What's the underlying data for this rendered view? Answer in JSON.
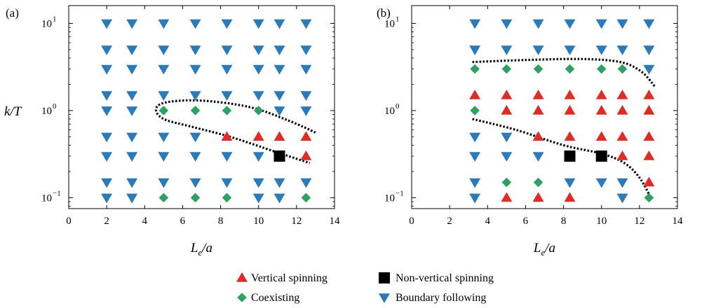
{
  "colors": {
    "vertical_spinning": "#de2d26",
    "non_vertical_spinning": "#000000",
    "coexisting": "#2ca25f",
    "boundary_following": "#2b7bba"
  },
  "legend": [
    {
      "key": "vertical_spinning",
      "label": "Vertical spinning",
      "marker": "triangle-up"
    },
    {
      "key": "non_vertical_spinning",
      "label": "Non-vertical spinning",
      "marker": "square"
    },
    {
      "key": "coexisting",
      "label": "Coexisting",
      "marker": "diamond"
    },
    {
      "key": "boundary_following",
      "label": "Boundary following",
      "marker": "triangle-down"
    }
  ],
  "chart_data": [
    {
      "type": "scatter",
      "panel_label": "(a)",
      "xlabel_main": "L",
      "xlabel_sub": "e",
      "xlabel_rest": "/a",
      "ylabel": "k/T",
      "xlim": [
        0,
        14
      ],
      "ylim": [
        0.075,
        16
      ],
      "yscale": "log",
      "xticks": [
        "0",
        "2",
        "4",
        "6",
        "8",
        "10",
        "12",
        "14"
      ],
      "yticks": [
        {
          "base": "10",
          "exp": "1",
          "value": 10
        },
        {
          "base": "10",
          "exp": "0",
          "value": 1
        },
        {
          "base": "10",
          "exp": "−1",
          "value": 0.1
        }
      ],
      "series": [
        {
          "key": "boundary_following",
          "points": [
            [
              2,
              10
            ],
            [
              3.33,
              10
            ],
            [
              5,
              10
            ],
            [
              6.67,
              10
            ],
            [
              8.33,
              10
            ],
            [
              10,
              10
            ],
            [
              11.1,
              10
            ],
            [
              12.5,
              10
            ],
            [
              2,
              5
            ],
            [
              3.33,
              5
            ],
            [
              5,
              5
            ],
            [
              6.67,
              5
            ],
            [
              8.33,
              5
            ],
            [
              10,
              5
            ],
            [
              11.1,
              5
            ],
            [
              12.5,
              5
            ],
            [
              2,
              3
            ],
            [
              3.33,
              3
            ],
            [
              5,
              3
            ],
            [
              6.67,
              3
            ],
            [
              8.33,
              3
            ],
            [
              10,
              3
            ],
            [
              11.1,
              3
            ],
            [
              12.5,
              3
            ],
            [
              2,
              1.5
            ],
            [
              3.33,
              1.5
            ],
            [
              5,
              1.5
            ],
            [
              6.67,
              1.5
            ],
            [
              8.33,
              1.5
            ],
            [
              10,
              1.5
            ],
            [
              11.1,
              1.5
            ],
            [
              12.5,
              1.5
            ],
            [
              2,
              1
            ],
            [
              3.33,
              1
            ],
            [
              11.1,
              1
            ],
            [
              12.5,
              1
            ],
            [
              2,
              0.5
            ],
            [
              3.33,
              0.5
            ],
            [
              5,
              0.5
            ],
            [
              6.67,
              0.5
            ],
            [
              2,
              0.3
            ],
            [
              3.33,
              0.3
            ],
            [
              5,
              0.3
            ],
            [
              6.67,
              0.3
            ],
            [
              8.33,
              0.3
            ],
            [
              10,
              0.3
            ],
            [
              2,
              0.15
            ],
            [
              3.33,
              0.15
            ],
            [
              5,
              0.15
            ],
            [
              6.67,
              0.15
            ],
            [
              8.33,
              0.15
            ],
            [
              10,
              0.15
            ],
            [
              11.1,
              0.15
            ],
            [
              12.5,
              0.15
            ],
            [
              2,
              0.1
            ],
            [
              3.33,
              0.1
            ],
            [
              10,
              0.1
            ],
            [
              11.1,
              0.1
            ]
          ]
        },
        {
          "key": "coexisting",
          "points": [
            [
              5,
              1
            ],
            [
              6.67,
              1
            ],
            [
              8.33,
              1
            ],
            [
              10,
              1
            ],
            [
              5,
              0.1
            ],
            [
              6.67,
              0.1
            ],
            [
              8.33,
              0.1
            ],
            [
              12.5,
              0.1
            ]
          ]
        },
        {
          "key": "vertical_spinning",
          "points": [
            [
              8.33,
              0.5
            ],
            [
              10,
              0.5
            ],
            [
              11.1,
              0.5
            ],
            [
              12.5,
              0.5
            ],
            [
              12.5,
              0.3
            ]
          ]
        },
        {
          "key": "non_vertical_spinning",
          "points": [
            [
              11.1,
              0.3
            ]
          ]
        }
      ],
      "boundary_curves": [
        [
          [
            13,
            0.56
          ],
          [
            11.5,
            0.78
          ],
          [
            9.5,
            1.1
          ],
          [
            7,
            1.3
          ],
          [
            5.2,
            1.25
          ],
          [
            4.6,
            1.05
          ],
          [
            5,
            0.8
          ],
          [
            6.5,
            0.65
          ],
          [
            8.5,
            0.5
          ],
          [
            11,
            0.33
          ],
          [
            12.7,
            0.25
          ]
        ]
      ]
    },
    {
      "type": "scatter",
      "panel_label": "(b)",
      "xlabel_main": "L",
      "xlabel_sub": "e",
      "xlabel_rest": "/a",
      "ylabel": "",
      "xlim": [
        0,
        14
      ],
      "ylim": [
        0.075,
        16
      ],
      "yscale": "log",
      "xticks": [
        "0",
        "2",
        "4",
        "6",
        "8",
        "10",
        "12",
        "14"
      ],
      "yticks": [
        {
          "base": "10",
          "exp": "1",
          "value": 10
        },
        {
          "base": "10",
          "exp": "0",
          "value": 1
        },
        {
          "base": "10",
          "exp": "−1",
          "value": 0.1
        }
      ],
      "series": [
        {
          "key": "boundary_following",
          "points": [
            [
              3.33,
              10
            ],
            [
              5,
              10
            ],
            [
              6.67,
              10
            ],
            [
              8.33,
              10
            ],
            [
              10,
              10
            ],
            [
              11.1,
              10
            ],
            [
              12.5,
              10
            ],
            [
              3.33,
              5
            ],
            [
              5,
              5
            ],
            [
              6.67,
              5
            ],
            [
              8.33,
              5
            ],
            [
              10,
              5
            ],
            [
              11.1,
              5
            ],
            [
              12.5,
              5
            ],
            [
              12.5,
              3
            ],
            [
              3.33,
              0.5
            ],
            [
              5,
              0.5
            ],
            [
              3.33,
              0.3
            ],
            [
              5,
              0.3
            ],
            [
              6.67,
              0.3
            ],
            [
              3.33,
              0.15
            ],
            [
              8.33,
              0.15
            ],
            [
              10,
              0.15
            ],
            [
              11.1,
              0.15
            ],
            [
              3.33,
              0.1
            ],
            [
              11.1,
              0.1
            ]
          ]
        },
        {
          "key": "coexisting",
          "points": [
            [
              3.33,
              3
            ],
            [
              5,
              3
            ],
            [
              6.67,
              3
            ],
            [
              8.33,
              3
            ],
            [
              10,
              3
            ],
            [
              11.1,
              3
            ],
            [
              3.33,
              1
            ],
            [
              5,
              0.15
            ],
            [
              6.67,
              0.15
            ],
            [
              12.5,
              0.1
            ]
          ]
        },
        {
          "key": "vertical_spinning",
          "points": [
            [
              3.33,
              1.5
            ],
            [
              5,
              1.5
            ],
            [
              6.67,
              1.5
            ],
            [
              8.33,
              1.5
            ],
            [
              10,
              1.5
            ],
            [
              11.1,
              1.5
            ],
            [
              12.5,
              1.5
            ],
            [
              5,
              1
            ],
            [
              6.67,
              1
            ],
            [
              8.33,
              1
            ],
            [
              10,
              1
            ],
            [
              11.1,
              1
            ],
            [
              12.5,
              1
            ],
            [
              6.67,
              0.5
            ],
            [
              8.33,
              0.5
            ],
            [
              10,
              0.5
            ],
            [
              11.1,
              0.5
            ],
            [
              12.5,
              0.5
            ],
            [
              11.1,
              0.3
            ],
            [
              12.5,
              0.3
            ],
            [
              12.5,
              0.15
            ],
            [
              5,
              0.1
            ],
            [
              6.67,
              0.1
            ],
            [
              8.33,
              0.1
            ]
          ]
        },
        {
          "key": "non_vertical_spinning",
          "points": [
            [
              8.33,
              0.3
            ],
            [
              10,
              0.3
            ]
          ]
        }
      ],
      "boundary_curves": [
        [
          [
            3.2,
            3.6
          ],
          [
            6,
            3.8
          ],
          [
            9,
            3.9
          ],
          [
            11,
            3.6
          ],
          [
            12.1,
            2.8
          ],
          [
            12.8,
            1.9
          ]
        ],
        [
          [
            3.2,
            0.8
          ],
          [
            5.5,
            0.6
          ],
          [
            8,
            0.4
          ],
          [
            10,
            0.32
          ],
          [
            11.2,
            0.25
          ],
          [
            12,
            0.17
          ],
          [
            12.6,
            0.1
          ]
        ]
      ]
    }
  ]
}
